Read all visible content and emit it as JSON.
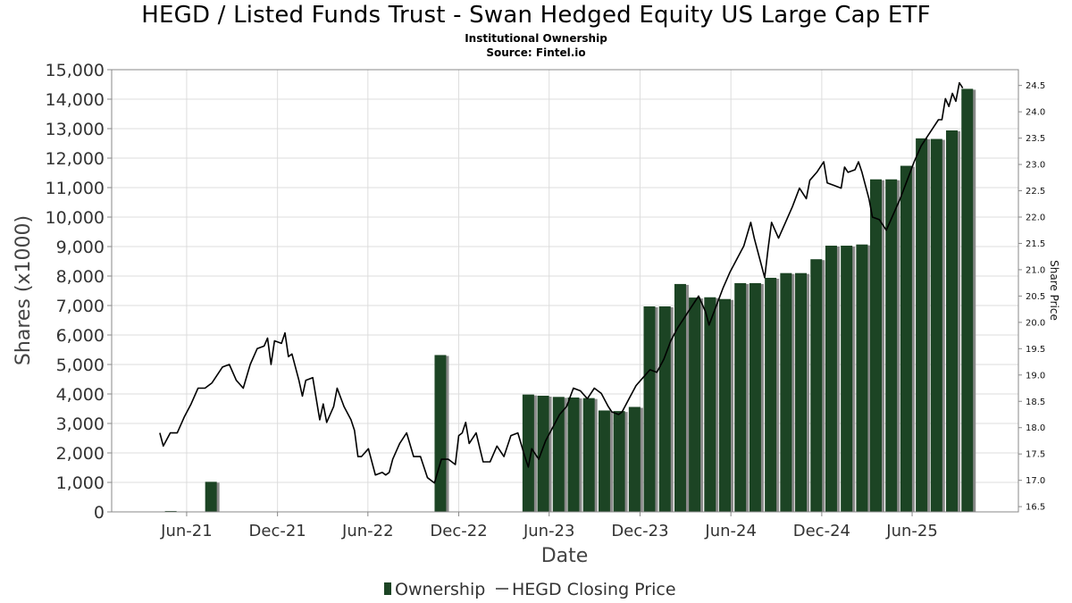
{
  "title": "HEGD / Listed Funds Trust - Swan Hedged Equity US Large Cap ETF",
  "subtitle": "Institutional Ownership",
  "source": "Source: Fintel.io",
  "colors": {
    "bar": "#1c4424",
    "bar_shadow": "#8a8a8a",
    "line": "#000000",
    "grid": "#dddddd"
  },
  "chart_data": {
    "type": "bar",
    "xlabel": "Date",
    "ylabel": "Shares (x1000)",
    "y2label": "Share Price",
    "ylim": [
      0,
      15000
    ],
    "y2lim": [
      16.4,
      24.8
    ],
    "yticks": [
      "0",
      "1,000",
      "2,000",
      "3,000",
      "4,000",
      "5,000",
      "6,000",
      "7,000",
      "8,000",
      "9,000",
      "10,000",
      "11,000",
      "12,000",
      "13,000",
      "14,000",
      "15,000"
    ],
    "y2ticks": [
      "16.5",
      "17.0",
      "17.5",
      "18.0",
      "18.5",
      "19.0",
      "19.5",
      "20.0",
      "20.5",
      "21.0",
      "21.5",
      "22.0",
      "22.5",
      "23.0",
      "23.5",
      "24.0",
      "24.5"
    ],
    "xticks": [
      {
        "label": "Jun-21",
        "date": "2021-06-01"
      },
      {
        "label": "Dec-21",
        "date": "2021-12-01"
      },
      {
        "label": "Jun-22",
        "date": "2022-06-01"
      },
      {
        "label": "Dec-22",
        "date": "2022-12-01"
      },
      {
        "label": "Jun-23",
        "date": "2023-06-01"
      },
      {
        "label": "Dec-23",
        "date": "2023-12-01"
      },
      {
        "label": "Jun-24",
        "date": "2024-06-01"
      },
      {
        "label": "Dec-24",
        "date": "2024-12-01"
      },
      {
        "label": "Jun-25",
        "date": "2025-06-01"
      }
    ],
    "xrange": [
      "2021-01-01",
      "2026-01-01"
    ],
    "grid": true,
    "legend_position": "bottom",
    "series": [
      {
        "name": "Ownership",
        "type": "bar",
        "points": [
          {
            "date": "2021-04-30",
            "value": 30
          },
          {
            "date": "2021-07-20",
            "value": 1020
          },
          {
            "date": "2022-10-25",
            "value": 5320
          },
          {
            "date": "2023-04-20",
            "value": 3980
          },
          {
            "date": "2023-05-20",
            "value": 3940
          },
          {
            "date": "2023-06-20",
            "value": 3900
          },
          {
            "date": "2023-07-20",
            "value": 3880
          },
          {
            "date": "2023-08-20",
            "value": 3860
          },
          {
            "date": "2023-09-20",
            "value": 3440
          },
          {
            "date": "2023-10-20",
            "value": 3420
          },
          {
            "date": "2023-11-20",
            "value": 3560
          },
          {
            "date": "2023-12-20",
            "value": 6970
          },
          {
            "date": "2024-01-20",
            "value": 6970
          },
          {
            "date": "2024-02-20",
            "value": 7730
          },
          {
            "date": "2024-03-20",
            "value": 7270
          },
          {
            "date": "2024-04-20",
            "value": 7280
          },
          {
            "date": "2024-05-20",
            "value": 7220
          },
          {
            "date": "2024-06-20",
            "value": 7760
          },
          {
            "date": "2024-07-20",
            "value": 7760
          },
          {
            "date": "2024-08-20",
            "value": 7940
          },
          {
            "date": "2024-09-20",
            "value": 8100
          },
          {
            "date": "2024-10-20",
            "value": 8100
          },
          {
            "date": "2024-11-20",
            "value": 8570
          },
          {
            "date": "2024-12-20",
            "value": 9030
          },
          {
            "date": "2025-01-20",
            "value": 9030
          },
          {
            "date": "2025-02-20",
            "value": 9070
          },
          {
            "date": "2025-03-20",
            "value": 11280
          },
          {
            "date": "2025-04-20",
            "value": 11280
          },
          {
            "date": "2025-05-20",
            "value": 11740
          },
          {
            "date": "2025-06-20",
            "value": 12670
          },
          {
            "date": "2025-07-20",
            "value": 12650
          },
          {
            "date": "2025-08-20",
            "value": 12940
          },
          {
            "date": "2025-09-20",
            "value": 14350
          }
        ]
      },
      {
        "name": "HEGD Closing Price",
        "type": "line",
        "points": [
          {
            "date": "2021-04-08",
            "value": 17.9
          },
          {
            "date": "2021-04-15",
            "value": 17.65
          },
          {
            "date": "2021-04-29",
            "value": 17.9
          },
          {
            "date": "2021-05-13",
            "value": 17.9
          },
          {
            "date": "2021-05-27",
            "value": 18.2
          },
          {
            "date": "2021-06-10",
            "value": 18.45
          },
          {
            "date": "2021-06-24",
            "value": 18.75
          },
          {
            "date": "2021-07-08",
            "value": 18.75
          },
          {
            "date": "2021-07-22",
            "value": 18.85
          },
          {
            "date": "2021-07-29",
            "value": 18.95
          },
          {
            "date": "2021-08-12",
            "value": 19.15
          },
          {
            "date": "2021-08-26",
            "value": 19.2
          },
          {
            "date": "2021-09-09",
            "value": 18.9
          },
          {
            "date": "2021-09-23",
            "value": 18.75
          },
          {
            "date": "2021-10-07",
            "value": 19.2
          },
          {
            "date": "2021-10-21",
            "value": 19.5
          },
          {
            "date": "2021-11-04",
            "value": 19.55
          },
          {
            "date": "2021-11-11",
            "value": 19.7
          },
          {
            "date": "2021-11-18",
            "value": 19.2
          },
          {
            "date": "2021-11-25",
            "value": 19.65
          },
          {
            "date": "2021-12-09",
            "value": 19.6
          },
          {
            "date": "2021-12-16",
            "value": 19.8
          },
          {
            "date": "2021-12-23",
            "value": 19.35
          },
          {
            "date": "2021-12-30",
            "value": 19.4
          },
          {
            "date": "2022-01-13",
            "value": 18.9
          },
          {
            "date": "2022-01-20",
            "value": 18.6
          },
          {
            "date": "2022-01-27",
            "value": 18.9
          },
          {
            "date": "2022-02-10",
            "value": 18.95
          },
          {
            "date": "2022-02-24",
            "value": 18.15
          },
          {
            "date": "2022-03-03",
            "value": 18.45
          },
          {
            "date": "2022-03-10",
            "value": 18.1
          },
          {
            "date": "2022-03-24",
            "value": 18.4
          },
          {
            "date": "2022-03-31",
            "value": 18.75
          },
          {
            "date": "2022-04-14",
            "value": 18.4
          },
          {
            "date": "2022-04-28",
            "value": 18.15
          },
          {
            "date": "2022-05-05",
            "value": 17.95
          },
          {
            "date": "2022-05-12",
            "value": 17.45
          },
          {
            "date": "2022-05-19",
            "value": 17.45
          },
          {
            "date": "2022-06-02",
            "value": 17.6
          },
          {
            "date": "2022-06-16",
            "value": 17.1
          },
          {
            "date": "2022-06-30",
            "value": 17.15
          },
          {
            "date": "2022-07-07",
            "value": 17.1
          },
          {
            "date": "2022-07-14",
            "value": 17.15
          },
          {
            "date": "2022-07-21",
            "value": 17.4
          },
          {
            "date": "2022-08-04",
            "value": 17.7
          },
          {
            "date": "2022-08-18",
            "value": 17.9
          },
          {
            "date": "2022-09-01",
            "value": 17.45
          },
          {
            "date": "2022-09-15",
            "value": 17.45
          },
          {
            "date": "2022-09-29",
            "value": 17.05
          },
          {
            "date": "2022-10-13",
            "value": 16.95
          },
          {
            "date": "2022-10-27",
            "value": 17.4
          },
          {
            "date": "2022-11-10",
            "value": 17.4
          },
          {
            "date": "2022-11-24",
            "value": 17.3
          },
          {
            "date": "2022-12-01",
            "value": 17.85
          },
          {
            "date": "2022-12-08",
            "value": 17.9
          },
          {
            "date": "2022-12-15",
            "value": 18.1
          },
          {
            "date": "2022-12-22",
            "value": 17.7
          },
          {
            "date": "2023-01-05",
            "value": 17.9
          },
          {
            "date": "2023-01-19",
            "value": 17.35
          },
          {
            "date": "2023-02-02",
            "value": 17.35
          },
          {
            "date": "2023-02-16",
            "value": 17.65
          },
          {
            "date": "2023-03-02",
            "value": 17.45
          },
          {
            "date": "2023-03-16",
            "value": 17.85
          },
          {
            "date": "2023-03-30",
            "value": 17.9
          },
          {
            "date": "2023-04-13",
            "value": 17.45
          },
          {
            "date": "2023-04-20",
            "value": 17.25
          },
          {
            "date": "2023-04-27",
            "value": 17.6
          },
          {
            "date": "2023-05-11",
            "value": 17.4
          },
          {
            "date": "2023-05-25",
            "value": 17.75
          },
          {
            "date": "2023-06-08",
            "value": 18.0
          },
          {
            "date": "2023-06-22",
            "value": 18.25
          },
          {
            "date": "2023-07-06",
            "value": 18.4
          },
          {
            "date": "2023-07-20",
            "value": 18.75
          },
          {
            "date": "2023-08-03",
            "value": 18.7
          },
          {
            "date": "2023-08-17",
            "value": 18.55
          },
          {
            "date": "2023-08-31",
            "value": 18.75
          },
          {
            "date": "2023-09-14",
            "value": 18.65
          },
          {
            "date": "2023-09-28",
            "value": 18.4
          },
          {
            "date": "2023-10-05",
            "value": 18.3
          },
          {
            "date": "2023-10-19",
            "value": 18.25
          },
          {
            "date": "2023-10-26",
            "value": 18.3
          },
          {
            "date": "2023-11-09",
            "value": 18.55
          },
          {
            "date": "2023-11-23",
            "value": 18.8
          },
          {
            "date": "2023-12-07",
            "value": 18.95
          },
          {
            "date": "2023-12-21",
            "value": 19.1
          },
          {
            "date": "2024-01-04",
            "value": 19.05
          },
          {
            "date": "2024-01-18",
            "value": 19.3
          },
          {
            "date": "2024-02-01",
            "value": 19.65
          },
          {
            "date": "2024-02-15",
            "value": 19.9
          },
          {
            "date": "2024-02-29",
            "value": 20.1
          },
          {
            "date": "2024-03-14",
            "value": 20.3
          },
          {
            "date": "2024-03-28",
            "value": 20.5
          },
          {
            "date": "2024-04-11",
            "value": 20.2
          },
          {
            "date": "2024-04-18",
            "value": 19.95
          },
          {
            "date": "2024-05-02",
            "value": 20.3
          },
          {
            "date": "2024-05-16",
            "value": 20.65
          },
          {
            "date": "2024-05-30",
            "value": 20.95
          },
          {
            "date": "2024-06-13",
            "value": 21.2
          },
          {
            "date": "2024-06-27",
            "value": 21.45
          },
          {
            "date": "2024-07-11",
            "value": 21.9
          },
          {
            "date": "2024-07-18",
            "value": 21.6
          },
          {
            "date": "2024-07-25",
            "value": 21.35
          },
          {
            "date": "2024-08-01",
            "value": 21.1
          },
          {
            "date": "2024-08-08",
            "value": 20.85
          },
          {
            "date": "2024-08-15",
            "value": 21.4
          },
          {
            "date": "2024-08-22",
            "value": 21.9
          },
          {
            "date": "2024-09-05",
            "value": 21.6
          },
          {
            "date": "2024-09-19",
            "value": 21.9
          },
          {
            "date": "2024-10-03",
            "value": 22.2
          },
          {
            "date": "2024-10-17",
            "value": 22.55
          },
          {
            "date": "2024-10-31",
            "value": 22.35
          },
          {
            "date": "2024-11-07",
            "value": 22.7
          },
          {
            "date": "2024-11-21",
            "value": 22.85
          },
          {
            "date": "2024-12-05",
            "value": 23.05
          },
          {
            "date": "2024-12-12",
            "value": 22.65
          },
          {
            "date": "2024-12-26",
            "value": 22.6
          },
          {
            "date": "2025-01-09",
            "value": 22.55
          },
          {
            "date": "2025-01-16",
            "value": 22.95
          },
          {
            "date": "2025-01-23",
            "value": 22.85
          },
          {
            "date": "2025-02-06",
            "value": 22.9
          },
          {
            "date": "2025-02-13",
            "value": 23.05
          },
          {
            "date": "2025-02-20",
            "value": 22.85
          },
          {
            "date": "2025-03-06",
            "value": 22.35
          },
          {
            "date": "2025-03-13",
            "value": 22.0
          },
          {
            "date": "2025-03-27",
            "value": 21.95
          },
          {
            "date": "2025-04-10",
            "value": 21.75
          },
          {
            "date": "2025-04-24",
            "value": 22.05
          },
          {
            "date": "2025-05-08",
            "value": 22.35
          },
          {
            "date": "2025-05-22",
            "value": 22.7
          },
          {
            "date": "2025-06-05",
            "value": 23.05
          },
          {
            "date": "2025-06-19",
            "value": 23.35
          },
          {
            "date": "2025-07-03",
            "value": 23.55
          },
          {
            "date": "2025-07-10",
            "value": 23.65
          },
          {
            "date": "2025-07-24",
            "value": 23.85
          },
          {
            "date": "2025-07-31",
            "value": 23.85
          },
          {
            "date": "2025-08-07",
            "value": 24.25
          },
          {
            "date": "2025-08-14",
            "value": 24.1
          },
          {
            "date": "2025-08-21",
            "value": 24.35
          },
          {
            "date": "2025-08-28",
            "value": 24.2
          },
          {
            "date": "2025-09-04",
            "value": 24.55
          },
          {
            "date": "2025-09-11",
            "value": 24.45
          }
        ]
      }
    ]
  }
}
